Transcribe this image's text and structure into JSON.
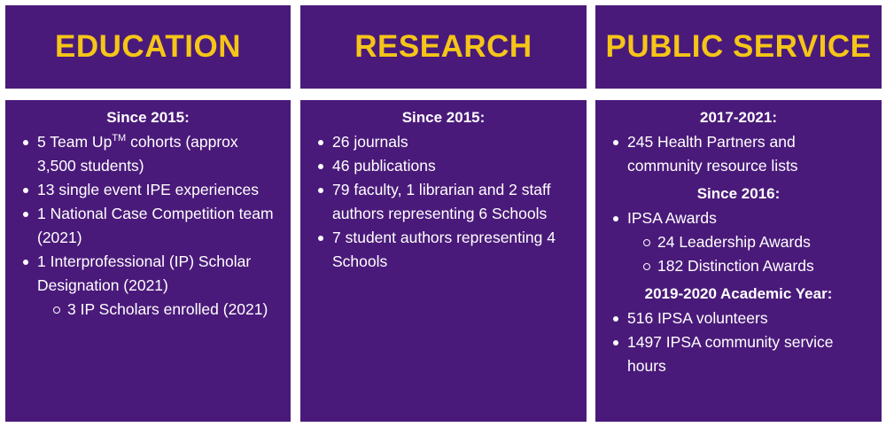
{
  "columns": [
    {
      "title": "EDUCATION",
      "sections": [
        {
          "heading": "Since 2015:",
          "items": [
            {
              "pre": "5 Team Up",
              "sup": "TM",
              "post": " cohorts (approx 3,500 students)"
            },
            {
              "text": "13 single event IPE experiences"
            },
            {
              "text": "1 National Case Competition team (2021)"
            },
            {
              "text": "1 Interprofessional (IP) Scholar Designation (2021)"
            }
          ],
          "subitems": [
            {
              "text": "3 IP Scholars enrolled (2021)"
            }
          ]
        }
      ]
    },
    {
      "title": "RESEARCH",
      "sections": [
        {
          "heading": "Since 2015:",
          "items": [
            {
              "text": "26 journals"
            },
            {
              "text": "46 publications"
            },
            {
              "text": "79 faculty, 1 librarian and 2 staff authors representing 6 Schools"
            },
            {
              "text": "7 student authors representing 4 Schools"
            }
          ]
        }
      ]
    },
    {
      "title": "PUBLIC SERVICE",
      "sections": [
        {
          "heading": "2017-2021:",
          "items": [
            {
              "text": "245 Health Partners and community resource lists"
            }
          ]
        },
        {
          "heading": "Since 2016:",
          "items": [
            {
              "text": "IPSA Awards"
            }
          ],
          "subitems": [
            {
              "text": "24 Leadership Awards"
            },
            {
              "text": "182 Distinction Awards"
            }
          ]
        },
        {
          "heading": "2019-2020 Academic Year:",
          "items": [
            {
              "text": "516 IPSA volunteers"
            },
            {
              "text": "1497 IPSA community service hours"
            }
          ]
        }
      ]
    }
  ],
  "colors": {
    "panel": "#4a1a7a",
    "title": "#f5c518",
    "text": "#ffffff"
  }
}
